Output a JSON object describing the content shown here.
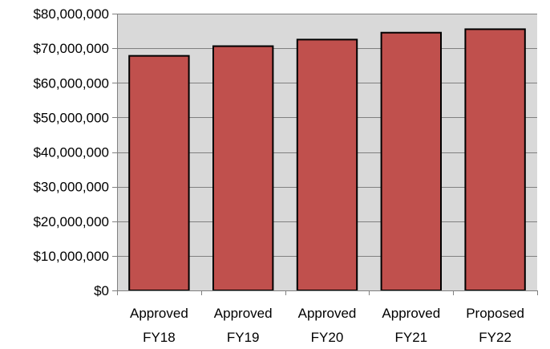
{
  "chart_data": {
    "type": "bar",
    "categories": [
      [
        "Approved",
        "FY18"
      ],
      [
        "Approved",
        "FY19"
      ],
      [
        "Approved",
        "FY20"
      ],
      [
        "Approved",
        "FY21"
      ],
      [
        "Proposed",
        "FY22"
      ]
    ],
    "values": [
      67800000,
      70600000,
      72500000,
      74500000,
      75500000
    ],
    "ylim": [
      0,
      80000000
    ],
    "yticks": [
      0,
      10000000,
      20000000,
      30000000,
      40000000,
      50000000,
      60000000,
      70000000,
      80000000
    ],
    "ytick_labels": [
      "$0",
      "$10,000,000",
      "$20,000,000",
      "$30,000,000",
      "$40,000,000",
      "$50,000,000",
      "$60,000,000",
      "$70,000,000",
      "$80,000,000"
    ],
    "grid": true,
    "legend": "none",
    "colors": {
      "bar_fill": "#c0504d",
      "bar_stroke": "#000000",
      "plot_background": "#d9d9d9",
      "gridline": "#808080"
    }
  }
}
